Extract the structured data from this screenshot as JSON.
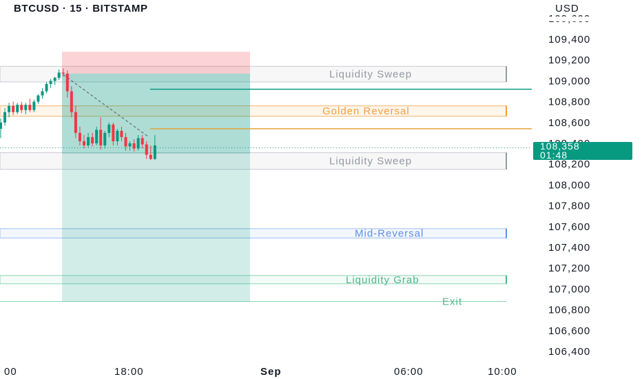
{
  "header": {
    "symbol_title": "BTCUSD · 15 · BITSTAMP",
    "currency": "USD"
  },
  "last_price": {
    "value": 108358,
    "label": "108,358",
    "countdown": "01:48",
    "color": "#089981"
  },
  "colors": {
    "up": "#089981",
    "down": "#f23645",
    "profit_zone": "#089981",
    "loss_zone": "#f23645",
    "golden": "#f2a03c",
    "mid": "#5b8ee6",
    "grab": "#4cb88a",
    "sweep": "#9598a1"
  },
  "chart_data": {
    "type": "candlestick",
    "symbol": "BTCUSD",
    "interval": "15",
    "exchange": "BITSTAMP",
    "y_axis": {
      "range": [
        106300,
        109600
      ],
      "ticks": [
        "109,400",
        "109,200",
        "109,000",
        "108,800",
        "108,600",
        "108,400",
        "108,200",
        "108,000",
        "107,800",
        "107,600",
        "107,400",
        "107,200",
        "107,000",
        "106,800",
        "106,600",
        "106,400"
      ],
      "tick_values": [
        109400,
        109200,
        109000,
        108800,
        108600,
        108400,
        108200,
        108000,
        107800,
        107600,
        107400,
        107200,
        107000,
        106800,
        106600,
        106400
      ],
      "partial_top_label": "109,600"
    },
    "x_axis": {
      "ticks": [
        "00",
        "18:00",
        "Sep",
        "06:00",
        "10:00"
      ]
    },
    "candles": [
      {
        "o": 108540,
        "h": 108640,
        "l": 108450,
        "c": 108600
      },
      {
        "o": 108600,
        "h": 108740,
        "l": 108570,
        "c": 108700
      },
      {
        "o": 108700,
        "h": 108790,
        "l": 108650,
        "c": 108760
      },
      {
        "o": 108760,
        "h": 108800,
        "l": 108670,
        "c": 108700
      },
      {
        "o": 108700,
        "h": 108790,
        "l": 108680,
        "c": 108770
      },
      {
        "o": 108770,
        "h": 108800,
        "l": 108690,
        "c": 108720
      },
      {
        "o": 108720,
        "h": 108790,
        "l": 108680,
        "c": 108770
      },
      {
        "o": 108770,
        "h": 108830,
        "l": 108700,
        "c": 108720
      },
      {
        "o": 108720,
        "h": 108820,
        "l": 108700,
        "c": 108800
      },
      {
        "o": 108800,
        "h": 108870,
        "l": 108780,
        "c": 108860
      },
      {
        "o": 108860,
        "h": 108930,
        "l": 108830,
        "c": 108900
      },
      {
        "o": 108900,
        "h": 108990,
        "l": 108880,
        "c": 108970
      },
      {
        "o": 108970,
        "h": 109020,
        "l": 108930,
        "c": 109000
      },
      {
        "o": 109000,
        "h": 109040,
        "l": 108960,
        "c": 109030
      },
      {
        "o": 109030,
        "h": 109110,
        "l": 109010,
        "c": 109080
      },
      {
        "o": 109080,
        "h": 109120,
        "l": 109040,
        "c": 109070
      },
      {
        "o": 109070,
        "h": 109100,
        "l": 108840,
        "c": 108900
      },
      {
        "o": 108900,
        "h": 108950,
        "l": 108650,
        "c": 108700
      },
      {
        "o": 108700,
        "h": 108760,
        "l": 108450,
        "c": 108500
      },
      {
        "o": 108500,
        "h": 108560,
        "l": 108380,
        "c": 108420
      },
      {
        "o": 108420,
        "h": 108480,
        "l": 108350,
        "c": 108380
      },
      {
        "o": 108380,
        "h": 108500,
        "l": 108360,
        "c": 108460
      },
      {
        "o": 108460,
        "h": 108500,
        "l": 108370,
        "c": 108400
      },
      {
        "o": 108400,
        "h": 108560,
        "l": 108380,
        "c": 108530
      },
      {
        "o": 108530,
        "h": 108650,
        "l": 108340,
        "c": 108380
      },
      {
        "o": 108380,
        "h": 108520,
        "l": 108350,
        "c": 108500
      },
      {
        "o": 108500,
        "h": 108600,
        "l": 108460,
        "c": 108580
      },
      {
        "o": 108580,
        "h": 108600,
        "l": 108380,
        "c": 108420
      },
      {
        "o": 108420,
        "h": 108540,
        "l": 108380,
        "c": 108520
      },
      {
        "o": 108520,
        "h": 108560,
        "l": 108420,
        "c": 108460
      },
      {
        "o": 108460,
        "h": 108500,
        "l": 108330,
        "c": 108370
      },
      {
        "o": 108370,
        "h": 108420,
        "l": 108330,
        "c": 108400
      },
      {
        "o": 108400,
        "h": 108440,
        "l": 108320,
        "c": 108350
      },
      {
        "o": 108350,
        "h": 108480,
        "l": 108330,
        "c": 108450
      },
      {
        "o": 108450,
        "h": 108480,
        "l": 108350,
        "c": 108390
      },
      {
        "o": 108390,
        "h": 108420,
        "l": 108250,
        "c": 108290
      },
      {
        "o": 108290,
        "h": 108380,
        "l": 108240,
        "c": 108250
      },
      {
        "o": 108250,
        "h": 108480,
        "l": 108240,
        "c": 108380
      }
    ],
    "zones": [
      {
        "label": "Liquidity Sweep",
        "top": 109140,
        "bottom": 108990,
        "style": "sweep"
      },
      {
        "label": "Golden Reversal",
        "top": 108760,
        "bottom": 108660,
        "style": "golden"
      },
      {
        "label": "Liquidity Sweep",
        "top": 108310,
        "bottom": 108150,
        "style": "sweep"
      },
      {
        "label": "Mid-Reversal",
        "top": 107580,
        "bottom": 107490,
        "style": "mid"
      },
      {
        "label": "Liquidity Grab",
        "top": 107130,
        "bottom": 107050,
        "style": "grab"
      },
      {
        "label": "Exit",
        "top": 106880,
        "bottom": 106880,
        "style": "grab"
      }
    ],
    "position": {
      "entry": 109070,
      "stop": 109280,
      "target": 106880
    },
    "horizontal_lines": [
      {
        "price": 108920,
        "color": "#089981"
      },
      {
        "price": 108540,
        "color": "#e0a43a"
      }
    ],
    "dashed_trendline": {
      "from_price": 109060,
      "to_price": 108470
    }
  }
}
